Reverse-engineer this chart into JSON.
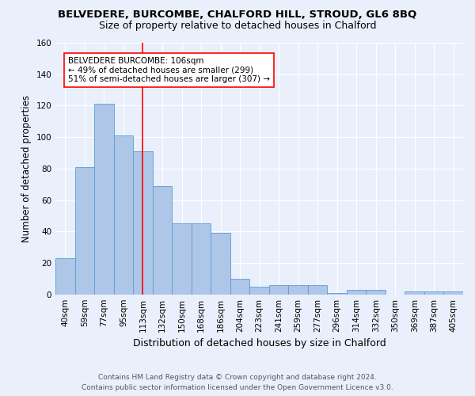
{
  "title": "BELVEDERE, BURCOMBE, CHALFORD HILL, STROUD, GL6 8BQ",
  "subtitle": "Size of property relative to detached houses in Chalford",
  "xlabel": "Distribution of detached houses by size in Chalford",
  "ylabel": "Number of detached properties",
  "footer_line1": "Contains HM Land Registry data © Crown copyright and database right 2024.",
  "footer_line2": "Contains public sector information licensed under the Open Government Licence v3.0.",
  "bar_labels": [
    "40sqm",
    "59sqm",
    "77sqm",
    "95sqm",
    "113sqm",
    "132sqm",
    "150sqm",
    "168sqm",
    "186sqm",
    "204sqm",
    "223sqm",
    "241sqm",
    "259sqm",
    "277sqm",
    "296sqm",
    "314sqm",
    "332sqm",
    "350sqm",
    "369sqm",
    "387sqm",
    "405sqm"
  ],
  "bar_values": [
    23,
    81,
    121,
    101,
    91,
    69,
    45,
    45,
    39,
    10,
    5,
    6,
    6,
    6,
    1,
    3,
    3,
    0,
    2,
    2,
    2
  ],
  "bar_color": "#aec6e8",
  "bar_edge_color": "#5b9bd5",
  "bg_color": "#eaf0fb",
  "annotation_line1": "BELVEDERE BURCOMBE: 106sqm",
  "annotation_line2": "← 49% of detached houses are smaller (299)",
  "annotation_line3": "51% of semi-detached houses are larger (307) →",
  "redline_bar_index": 4,
  "ylim": [
    0,
    160
  ],
  "yticks": [
    0,
    20,
    40,
    60,
    80,
    100,
    120,
    140,
    160
  ],
  "title_fontsize": 9.5,
  "subtitle_fontsize": 9,
  "xlabel_fontsize": 9,
  "ylabel_fontsize": 8.5,
  "tick_fontsize": 7.5,
  "annotation_fontsize": 7.5,
  "footer_fontsize": 6.5
}
